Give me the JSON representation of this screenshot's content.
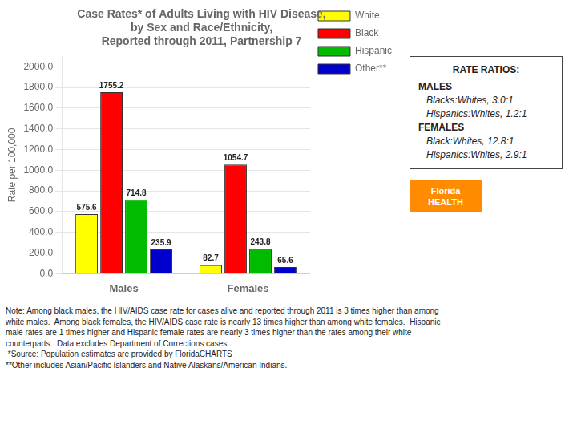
{
  "chart_data": {
    "type": "bar",
    "title": "Case Rates* of Adults Living with HIV Disease,\nby Sex and Race/Ethnicity,\nReported through 2011, Partnership 7",
    "categories": [
      "Males",
      "Females"
    ],
    "series": [
      {
        "name": "White",
        "color": "#FFFF00",
        "values": [
          575.6,
          82.7
        ]
      },
      {
        "name": "Black",
        "color": "#FF0000",
        "values": [
          1755.2,
          1054.7
        ]
      },
      {
        "name": "Hispanic",
        "color": "#00BB00",
        "values": [
          714.8,
          243.8
        ]
      },
      {
        "name": "Other**",
        "color": "#0000CC",
        "values": [
          235.9,
          65.6
        ]
      }
    ],
    "ylabel": "Rate per 100,000",
    "ylim": [
      0,
      2100
    ],
    "yticks": [
      {
        "value": 0,
        "label": "0.0"
      },
      {
        "value": 200,
        "label": "200.0"
      },
      {
        "value": 400,
        "label": "400.0"
      },
      {
        "value": 600,
        "label": "600.0"
      },
      {
        "value": 800,
        "label": "800.0"
      },
      {
        "value": 1000,
        "label": "1000.0"
      },
      {
        "value": 1200,
        "label": "1200.0"
      },
      {
        "value": 1400,
        "label": "1400.0"
      },
      {
        "value": 1600,
        "label": "1600.0"
      },
      {
        "value": 1800,
        "label": "1800.0"
      },
      {
        "value": 2000,
        "label": "2000.0"
      }
    ],
    "grid": true,
    "legend": "upper right",
    "data_labels": true,
    "annotations": [
      "RATE RATIOS:",
      "MALES",
      "Blacks:Whites, 3.0:1",
      "Hispanics:Whites, 1.2:1",
      "FEMALES",
      "Black:Whites, 12.8:1",
      "Hispanics:Whites, 2.9:1",
      "Note: Among black males, the HIV/AIDS case rate for cases alive and reported through 2011 is 3 times higher than among",
      "white males.  Among black females, the HIV/AIDS case rate is nearly 13 times higher than among white females.  Hispanic",
      "male rates are 1 times higher and Hispanic female rates are nearly 3 times higher than the rates among their white",
      "counterparts.  Data excludes Department of Corrections cases.",
      " *Source: Population estimates are provided by FloridaCHARTS",
      "**Other includes Asian/Pacific Islanders and Native Alaskans/American Indians.",
      "Florida",
      "HEALTH"
    ]
  }
}
